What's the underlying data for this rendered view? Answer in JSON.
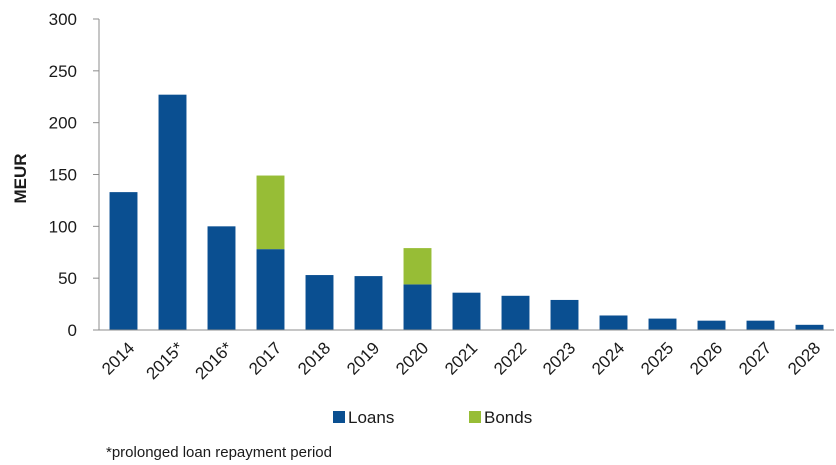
{
  "chart_data": {
    "type": "bar",
    "stacked": true,
    "categories": [
      "2014",
      "2015*",
      "2016*",
      "2017",
      "2018",
      "2019",
      "2020",
      "2021",
      "2022",
      "2023",
      "2024",
      "2025",
      "2026",
      "2027",
      "2028"
    ],
    "series": [
      {
        "name": "Loans",
        "color": "#0a4f91",
        "values": [
          133,
          227,
          100,
          78,
          53,
          52,
          44,
          36,
          33,
          29,
          14,
          11,
          9,
          9,
          5
        ]
      },
      {
        "name": "Bonds",
        "color": "#97bd36",
        "values": [
          0,
          0,
          0,
          71,
          0,
          0,
          35,
          0,
          0,
          0,
          0,
          0,
          0,
          0,
          0
        ]
      }
    ],
    "ylabel": "MEUR",
    "ylim": [
      0,
      300
    ],
    "yticks": [
      0,
      50,
      100,
      150,
      200,
      250,
      300
    ],
    "grid": false,
    "legend_position": "bottom",
    "footnote": "*prolonged loan repayment period"
  }
}
